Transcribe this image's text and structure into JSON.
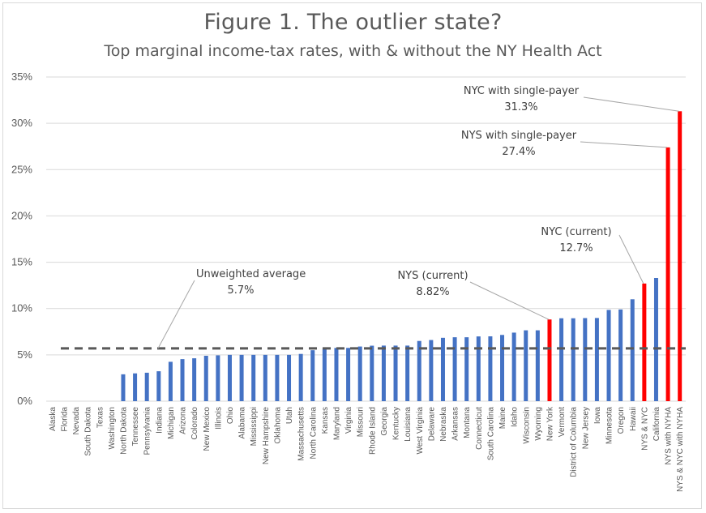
{
  "chart_data": {
    "type": "bar",
    "title": "Figure 1. The outlier state?",
    "subtitle": "Top marginal income-tax rates, with & without the NY Health Act",
    "ylim": [
      0,
      35
    ],
    "yticks": [
      "0%",
      "5%",
      "10%",
      "15%",
      "20%",
      "25%",
      "30%",
      "35%"
    ],
    "ytick_values": [
      0,
      5,
      10,
      15,
      20,
      25,
      30,
      35
    ],
    "grid": true,
    "legend": "none",
    "colors": {
      "default": "#4472c4",
      "highlight": "#ff0000",
      "average": "#595959"
    },
    "categories": [
      "Alaska",
      "Florida",
      "Nevada",
      "South Dakota",
      "Texas",
      "Washington",
      "North Dakota",
      "Tennessee",
      "Pennsylvania",
      "Indiana",
      "Michigan",
      "Arizona",
      "Colorado",
      "New Mexico",
      "Illinois",
      "Ohio",
      "Alabama",
      "Mississippi",
      "New Hampshire",
      "Oklahoma",
      "Utah",
      "Massachusetts",
      "North Carolina",
      "Kansas",
      "Maryland",
      "Virginia",
      "Missouri",
      "Rhode Island",
      "Georgia",
      "Kentucky",
      "Louisiana",
      "West Virginia",
      "Delaware",
      "Nebraska",
      "Arkansas",
      "Montana",
      "Connecticut",
      "South Carolina",
      "Maine",
      "Idaho",
      "Wisconsin",
      "Wyoming",
      "New York",
      "Vermont",
      "District of Columbia",
      "New Jersey",
      "Iowa",
      "Minnesota",
      "Oregon",
      "Hawaii",
      "NYS & NYC",
      "California",
      "NYS with NYHA",
      "NYS & NYC with NYHA"
    ],
    "values": [
      0,
      0,
      0,
      0,
      0,
      0,
      2.9,
      3.0,
      3.07,
      3.23,
      4.25,
      4.54,
      4.63,
      4.9,
      4.95,
      5.0,
      5.0,
      5.0,
      5.0,
      5.0,
      5.0,
      5.1,
      5.5,
      5.7,
      5.75,
      5.75,
      5.9,
      5.99,
      6.0,
      6.0,
      6.0,
      6.5,
      6.6,
      6.84,
      6.9,
      6.9,
      6.99,
      7.0,
      7.15,
      7.4,
      7.65,
      7.65,
      8.82,
      8.95,
      8.95,
      8.97,
      8.98,
      9.85,
      9.9,
      11.0,
      12.7,
      13.3,
      27.4,
      31.3
    ],
    "highlight": [
      "New York",
      "NYS & NYC",
      "NYS with NYHA",
      "NYS & NYC with NYHA"
    ],
    "average": {
      "value": 5.7,
      "label": "Unweighted average",
      "value_label": "5.7%"
    },
    "annotations": [
      {
        "id": "nys-current",
        "target": "New York",
        "label": "NYS (current)",
        "value_label": "8.82%"
      },
      {
        "id": "nyc-current",
        "target": "NYS & NYC",
        "label": "NYC (current)",
        "value_label": "12.7%"
      },
      {
        "id": "nys-single",
        "target": "NYS with NYHA",
        "label": "NYS with single-payer",
        "value_label": "27.4%"
      },
      {
        "id": "nyc-single",
        "target": "NYS & NYC with NYHA",
        "label": "NYC with single-payer",
        "value_label": "31.3%"
      }
    ]
  }
}
